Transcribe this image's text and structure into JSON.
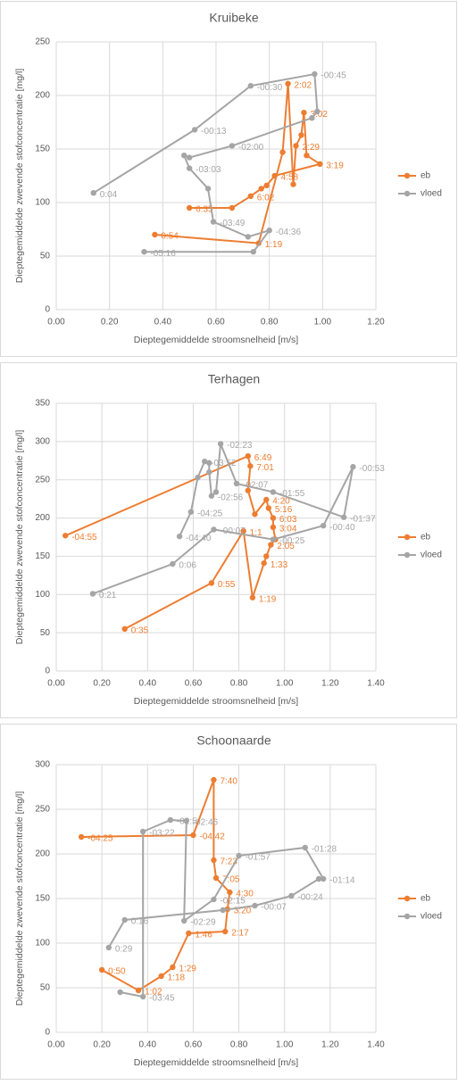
{
  "chart_data": [
    {
      "type": "line",
      "title": "Kruibeke",
      "x_label": "Dieptegemiddelde stroomsnelheid [m/s]",
      "y_label": "Dieptegemiddelde zwevende stofconcentratie [mg/l]",
      "xlim": [
        0,
        1.2
      ],
      "ylim": [
        0,
        250
      ],
      "xticks": [
        {
          "value": 0,
          "label": "0.00"
        },
        {
          "value": 0.2,
          "label": "0.20"
        },
        {
          "value": 0.4,
          "label": "0.40"
        },
        {
          "value": 0.6,
          "label": "0.60"
        },
        {
          "value": 0.8,
          "label": "0.80"
        },
        {
          "value": 1,
          "label": "1.00"
        },
        {
          "value": 1.2,
          "label": "1.20"
        }
      ],
      "yticks": [
        0,
        50,
        100,
        150,
        200,
        250
      ],
      "grid": true,
      "legend": "right",
      "series": [
        {
          "name": "eb",
          "color": "#ed7d31",
          "x": [
            0.37,
            0.76,
            0.85,
            0.87,
            0.89,
            0.9,
            0.92,
            0.93,
            0.94,
            0.99,
            0.82,
            0.79,
            0.77,
            0.73,
            0.66,
            0.5
          ],
          "values": [
            70,
            62,
            147,
            211,
            117,
            153,
            163,
            184,
            144,
            136,
            125,
            116,
            113,
            106,
            95,
            95
          ],
          "point_labels": [
            "0:54",
            "1:19",
            null,
            "2:02",
            null,
            "2:29",
            null,
            "3:02",
            null,
            "3:19",
            "4:58",
            null,
            null,
            "6:02",
            null,
            "6:35"
          ]
        },
        {
          "name": "vloed",
          "color": "#a5a5a5",
          "x": [
            0.33,
            0.74,
            0.8,
            0.72,
            0.59,
            0.57,
            0.5,
            0.48,
            0.5,
            0.66,
            0.96,
            0.98,
            0.97,
            0.73,
            0.52,
            0.14
          ],
          "values": [
            54,
            54,
            74,
            68,
            82,
            113,
            132,
            144,
            142,
            153,
            179,
            185,
            220,
            209,
            168,
            109
          ],
          "point_labels": [
            "-05:16",
            null,
            "-04:36",
            null,
            "-03:49",
            null,
            "-03:03",
            null,
            null,
            "-02:00",
            null,
            null,
            "-00:45",
            "-00:30",
            "-00:13",
            "0:04"
          ]
        }
      ]
    },
    {
      "type": "line",
      "title": "Terhagen",
      "x_label": "Dieptegemiddelde stroomsnelheid [m/s]",
      "y_label": "Dieptegemiddelde zwevende stofconcentratie [mg/l]",
      "xlim": [
        0,
        1.4
      ],
      "ylim": [
        0,
        350
      ],
      "xticks": [
        {
          "value": 0,
          "label": "0.00"
        },
        {
          "value": 0.2,
          "label": "0.20"
        },
        {
          "value": 0.4,
          "label": "0.40"
        },
        {
          "value": 0.6,
          "label": "0.60"
        },
        {
          "value": 0.8,
          "label": "0.80"
        },
        {
          "value": 1,
          "label": "1.00"
        },
        {
          "value": 1.2,
          "label": "1.20"
        },
        {
          "value": 1.4,
          "label": "1.40"
        }
      ],
      "yticks": [
        0,
        50,
        100,
        150,
        200,
        250,
        300,
        350
      ],
      "grid": true,
      "legend": "right",
      "series": [
        {
          "name": "eb",
          "color": "#ed7d31",
          "x": [
            0.3,
            0.68,
            0.82,
            0.86,
            0.91,
            0.92,
            0.94,
            0.96,
            0.95,
            0.95,
            0.93,
            0.92,
            0.87,
            0.84,
            0.85,
            0.84,
            0.04
          ],
          "values": [
            55,
            115,
            183,
            96,
            141,
            150,
            165,
            172,
            188,
            200,
            213,
            224,
            205,
            236,
            268,
            281,
            177
          ],
          "point_labels": [
            "0:35",
            "0:55",
            "1:1",
            "1:19",
            "1:33",
            null,
            "2:05",
            null,
            "3:04",
            "6:03",
            "5:16",
            "4:20",
            null,
            null,
            "7:01",
            "6:49",
            "-04:55"
          ]
        },
        {
          "name": "vloed",
          "color": "#a5a5a5",
          "x": [
            0.54,
            0.59,
            0.62,
            0.65,
            0.67,
            0.67,
            0.68,
            0.7,
            0.72,
            0.79,
            0.95,
            1.26,
            1.3,
            1.17,
            0.95,
            0.69,
            0.51,
            0.16
          ],
          "values": [
            176,
            208,
            253,
            274,
            272,
            260,
            229,
            234,
            297,
            245,
            234,
            201,
            267,
            190,
            172,
            185,
            140,
            101
          ],
          "point_labels": [
            "-04:40",
            "-04:25",
            null,
            "-03:52",
            null,
            null,
            "-02:56",
            null,
            "-02:23",
            "-02:07",
            "-01:55",
            "-01:37",
            "-00:53",
            "-00:40",
            "-00:25",
            "-00:07",
            "0:06",
            "0:21"
          ]
        }
      ]
    },
    {
      "type": "line",
      "title": "Schoonaarde",
      "x_label": "Dieptegemiddelde stroomsnelheid [m/s]",
      "y_label": "Dieptegemiddelde zwevende stofconcentratie [mg/l]",
      "xlim": [
        0,
        1.4
      ],
      "ylim": [
        0,
        300
      ],
      "xticks": [
        {
          "value": 0,
          "label": "0.00"
        },
        {
          "value": 0.2,
          "label": "0.20"
        },
        {
          "value": 0.4,
          "label": "0.40"
        },
        {
          "value": 0.6,
          "label": "0.60"
        },
        {
          "value": 0.8,
          "label": "0.80"
        },
        {
          "value": 1,
          "label": "1.00"
        },
        {
          "value": 1.2,
          "label": "1.20"
        },
        {
          "value": 1.4,
          "label": "1.40"
        }
      ],
      "yticks": [
        0,
        50,
        100,
        150,
        200,
        250,
        300
      ],
      "grid": true,
      "legend": "right",
      "series": [
        {
          "name": "eb",
          "color": "#ed7d31",
          "x": [
            0.2,
            0.36,
            0.46,
            0.51,
            0.58,
            0.74,
            0.75,
            0.76,
            0.7,
            0.69,
            0.69,
            0.6,
            0.11
          ],
          "values": [
            70,
            47,
            63,
            73,
            111,
            113,
            138,
            157,
            173,
            193,
            283,
            221,
            219
          ],
          "point_labels": [
            "0:50",
            "1:02",
            "1:18",
            "1:29",
            "1:46",
            "2:17",
            "3:20",
            "4:30",
            "7:05",
            "7:23",
            "7:40",
            "-04:42",
            "-04:25"
          ]
        },
        {
          "name": "vloed",
          "color": "#a5a5a5",
          "x": [
            0.28,
            0.38,
            0.38,
            0.5,
            0.57,
            0.56,
            0.69,
            0.8,
            1.09,
            1.17,
            1.15,
            1.03,
            0.87,
            0.73,
            0.3,
            0.23
          ],
          "values": [
            45,
            40,
            225,
            238,
            237,
            125,
            149,
            198,
            207,
            172,
            172,
            153,
            142,
            137,
            126,
            95
          ],
          "point_labels": [
            null,
            "-03:45",
            "-03:22",
            "-02:5",
            "-02:46",
            "-02:29",
            "-02:15",
            "-01:57",
            "-01:28",
            "-01:14",
            null,
            "-00:24",
            "-00:07",
            null,
            "0:16",
            "0:29"
          ]
        }
      ]
    }
  ]
}
